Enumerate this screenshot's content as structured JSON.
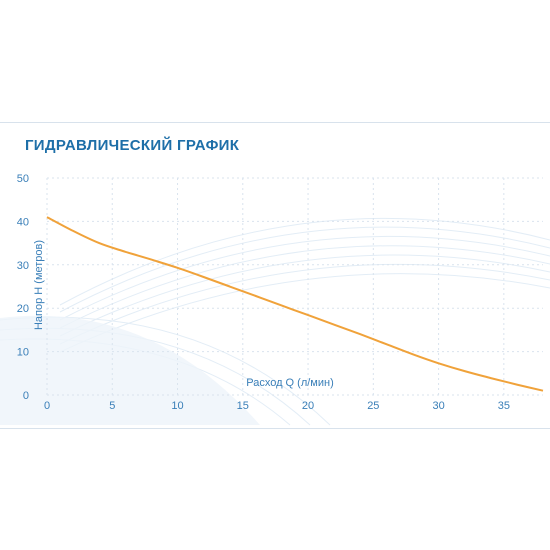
{
  "chart_data": {
    "type": "line",
    "title": "ГИДРАВЛИЧЕСКИЙ ГРАФИК",
    "xlabel": "Расход Q (л/мин)",
    "ylabel": "Напор H (метров)",
    "xlim": [
      0,
      38
    ],
    "ylim": [
      0,
      50
    ],
    "x_ticks": [
      0,
      5,
      10,
      15,
      20,
      25,
      30,
      35
    ],
    "y_ticks": [
      0,
      10,
      20,
      30,
      40,
      50
    ],
    "grid": true,
    "series": [
      {
        "x": [
          0,
          2,
          4,
          6,
          8,
          10,
          12,
          14,
          16,
          18,
          20,
          22,
          24,
          26,
          28,
          30,
          32,
          34,
          36,
          38
        ],
        "y": [
          41,
          37.8,
          35,
          33,
          31.2,
          29.3,
          27.2,
          25,
          22.8,
          20.6,
          18.4,
          16.2,
          14,
          11.7,
          9.4,
          7.3,
          5.5,
          3.9,
          2.4,
          1.0
        ]
      }
    ],
    "colors": {
      "line": "#f0a23a",
      "grid": "#d9e3ee",
      "axis_text": "#3a7fb8",
      "title": "#1e6fa8"
    }
  }
}
